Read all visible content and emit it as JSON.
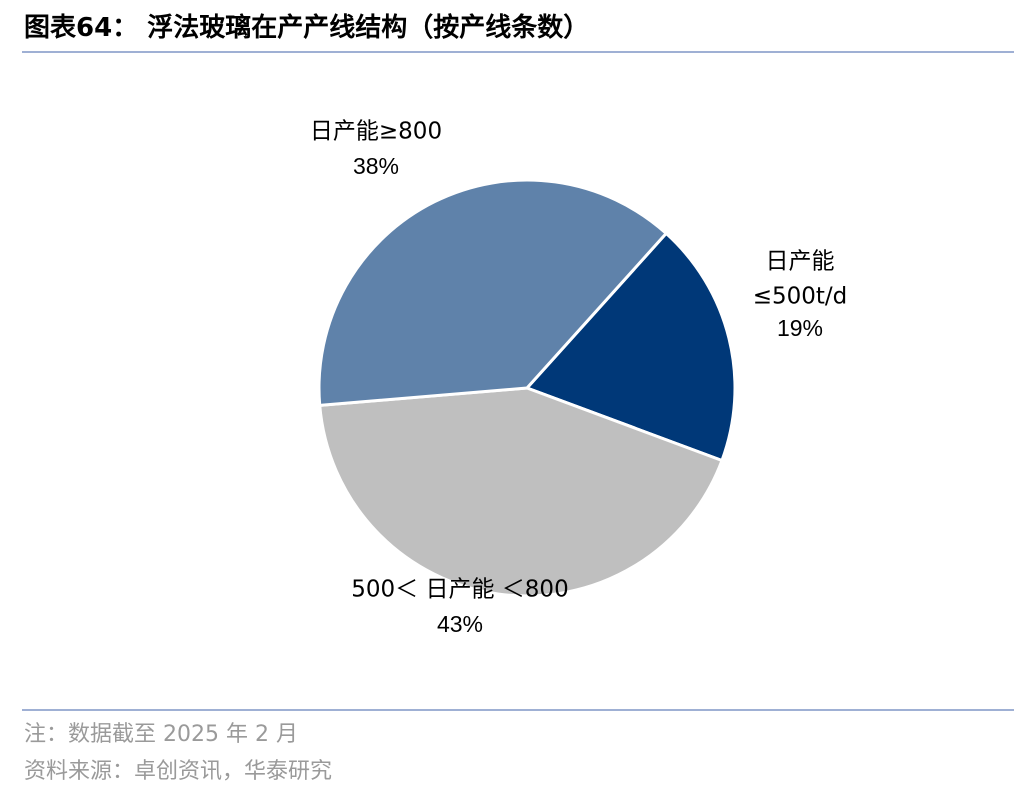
{
  "figure": {
    "title": "图表64： 浮法玻璃在产产线结构（按产线条数）"
  },
  "chart_data": {
    "type": "pie",
    "title": "",
    "slices": [
      {
        "label_lines": [
          "日产能",
          "≤500t/d"
        ],
        "pct_label": "19%",
        "value": 19,
        "color": "#003878"
      },
      {
        "label_lines": [
          "500＜ 日产能 ＜800"
        ],
        "pct_label": "43%",
        "value": 43,
        "color": "#bfbfbf"
      },
      {
        "label_lines": [
          "日产能≥800"
        ],
        "pct_label": "38%",
        "value": 38,
        "color": "#5f82aa"
      }
    ]
  },
  "footer": {
    "note": "注：数据截至 2025 年 2 月",
    "source": "资料来源：卓创资讯，华泰研究"
  }
}
